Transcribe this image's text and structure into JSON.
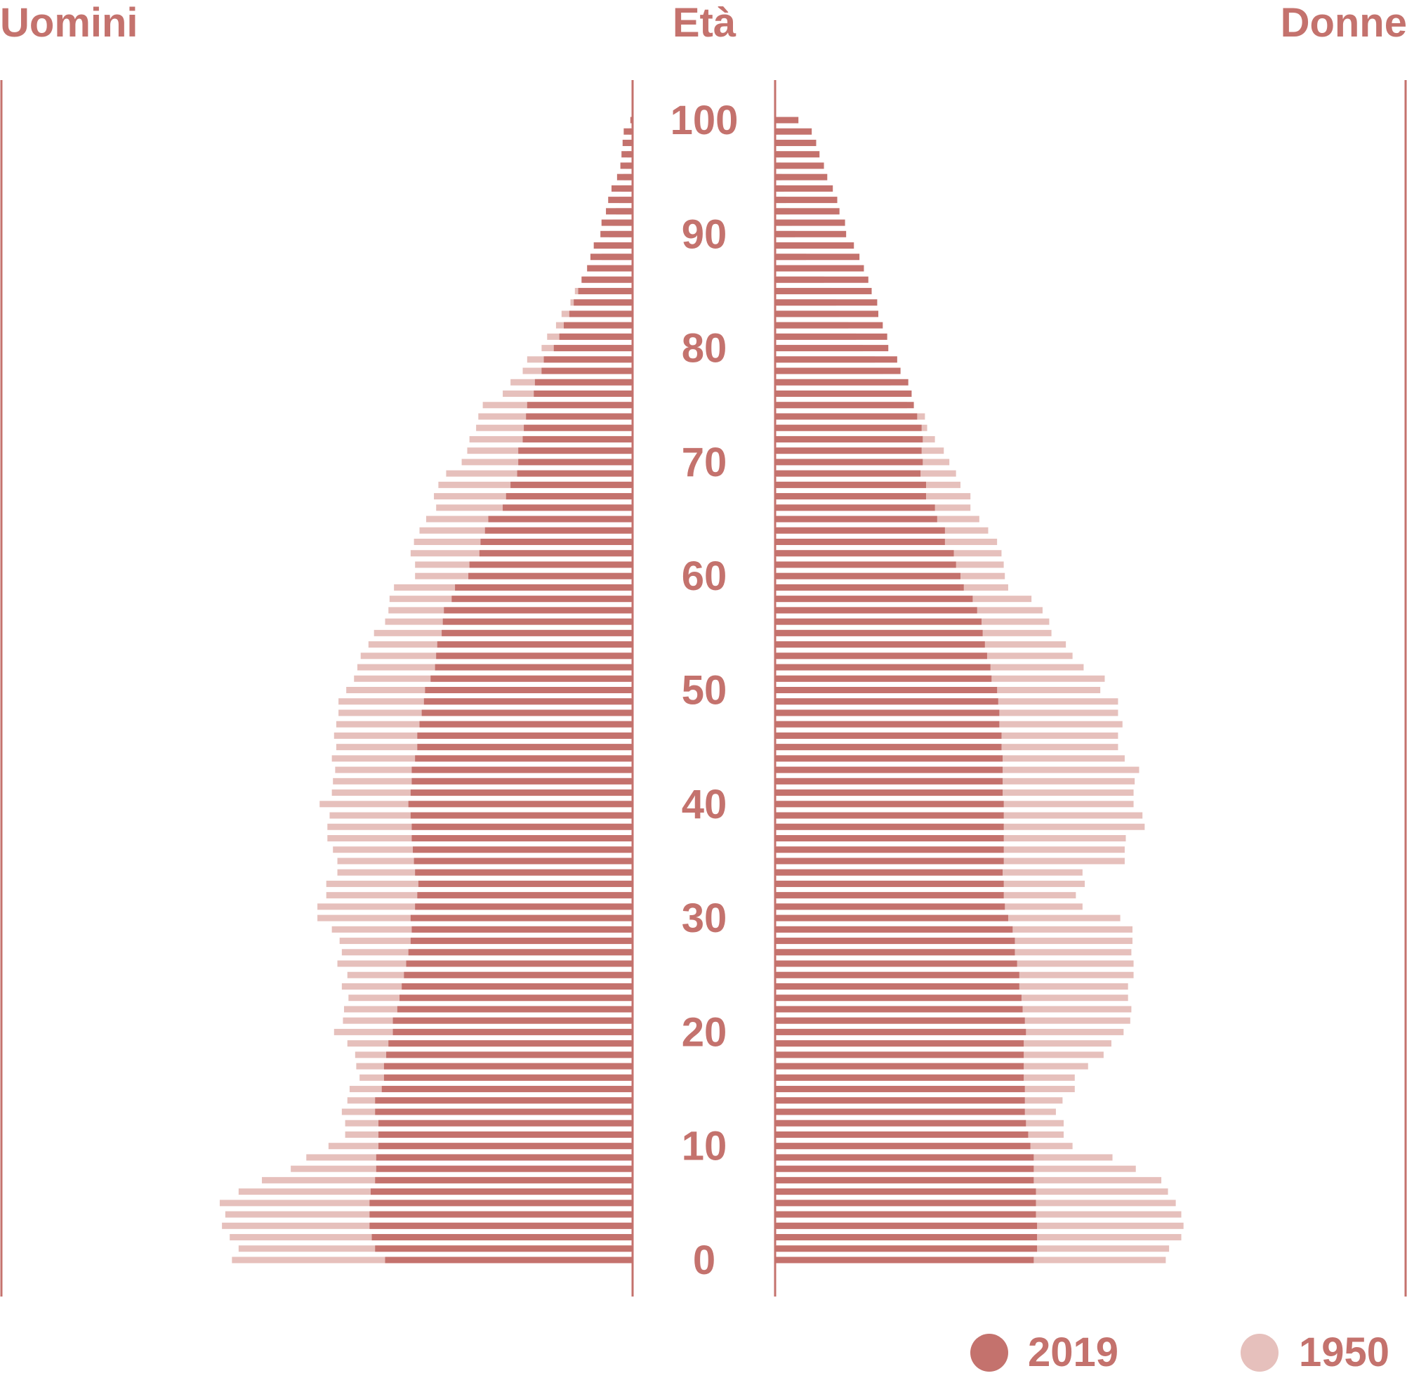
{
  "chart_data": {
    "type": "bar",
    "subtype": "population-pyramid",
    "left_label": "Uomini",
    "center_label": "Età",
    "right_label": "Donne",
    "age_ticks": [
      0,
      10,
      20,
      30,
      40,
      50,
      60,
      70,
      80,
      90,
      100
    ],
    "ages": [
      0,
      1,
      2,
      3,
      4,
      5,
      6,
      7,
      8,
      9,
      10,
      11,
      12,
      13,
      14,
      15,
      16,
      17,
      18,
      19,
      20,
      21,
      22,
      23,
      24,
      25,
      26,
      27,
      28,
      29,
      30,
      31,
      32,
      33,
      34,
      35,
      36,
      37,
      38,
      39,
      40,
      41,
      42,
      43,
      44,
      45,
      46,
      47,
      48,
      49,
      50,
      51,
      52,
      53,
      54,
      55,
      56,
      57,
      58,
      59,
      60,
      61,
      62,
      63,
      64,
      65,
      66,
      67,
      68,
      69,
      70,
      71,
      72,
      73,
      74,
      75,
      76,
      77,
      78,
      79,
      80,
      81,
      82,
      83,
      84,
      85,
      86,
      87,
      88,
      89,
      90,
      91,
      92,
      93,
      94,
      95,
      96,
      97,
      98,
      99,
      100
    ],
    "x_axis_max_thousands": 570,
    "series": [
      {
        "name": "2019",
        "color": "#c4726d",
        "men": [
          223,
          232,
          235,
          237,
          237,
          237,
          236,
          232,
          231,
          231,
          229,
          229,
          229,
          232,
          232,
          226,
          224,
          224,
          222,
          220,
          216,
          216,
          212,
          210,
          208,
          206,
          204,
          202,
          200,
          199,
          200,
          196,
          194,
          193,
          196,
          197,
          198,
          199,
          199,
          200,
          202,
          200,
          199,
          199,
          196,
          194,
          194,
          192,
          190,
          188,
          187,
          182,
          178,
          177,
          176,
          172,
          171,
          170,
          163,
          160,
          148,
          147,
          138,
          137,
          133,
          130,
          117,
          114,
          110,
          104,
          103,
          103,
          99,
          98,
          96,
          95,
          89,
          88,
          82,
          80,
          71,
          66,
          62,
          57,
          53,
          49,
          46,
          41,
          38,
          35,
          29,
          28,
          24,
          22,
          19,
          14,
          11,
          10,
          9,
          8,
          2
        ],
        "women": [
          233,
          236,
          236,
          236,
          235,
          235,
          235,
          233,
          233,
          233,
          230,
          228,
          226,
          225,
          225,
          225,
          224,
          224,
          224,
          224,
          226,
          225,
          223,
          222,
          220,
          220,
          218,
          216,
          216,
          214,
          210,
          207,
          206,
          206,
          205,
          206,
          206,
          206,
          206,
          206,
          206,
          205,
          205,
          205,
          205,
          204,
          204,
          202,
          202,
          201,
          200,
          195,
          194,
          191,
          189,
          187,
          186,
          182,
          178,
          170,
          167,
          163,
          161,
          153,
          153,
          146,
          144,
          136,
          136,
          131,
          133,
          132,
          133,
          132,
          128,
          125,
          123,
          120,
          113,
          110,
          102,
          101,
          97,
          93,
          92,
          87,
          84,
          80,
          76,
          71,
          64,
          63,
          58,
          56,
          52,
          47,
          44,
          40,
          37,
          33,
          21
        ]
      },
      {
        "name": "1950",
        "color": "#e6c0bc",
        "men": [
          361,
          355,
          363,
          370,
          367,
          372,
          355,
          334,
          308,
          294,
          274,
          259,
          259,
          262,
          257,
          255,
          246,
          249,
          250,
          257,
          269,
          261,
          260,
          256,
          262,
          257,
          266,
          262,
          264,
          271,
          284,
          284,
          276,
          276,
          266,
          266,
          270,
          275,
          275,
          273,
          282,
          271,
          270,
          268,
          271,
          267,
          269,
          267,
          265,
          265,
          258,
          251,
          248,
          245,
          238,
          233,
          223,
          220,
          219,
          215,
          196,
          196,
          200,
          197,
          192,
          186,
          177,
          179,
          175,
          168,
          154,
          149,
          147,
          141,
          139,
          135,
          117,
          110,
          99,
          95,
          82,
          77,
          69,
          64,
          56,
          52,
          45,
          36,
          28,
          25,
          21,
          18,
          15,
          12,
          10,
          8,
          6,
          5,
          4,
          3,
          2
        ],
        "women": [
          352,
          355,
          366,
          368,
          366,
          361,
          354,
          348,
          325,
          304,
          268,
          260,
          260,
          253,
          259,
          270,
          270,
          282,
          296,
          303,
          314,
          320,
          321,
          318,
          318,
          323,
          323,
          321,
          322,
          322,
          311,
          277,
          271,
          279,
          277,
          315,
          315,
          316,
          333,
          331,
          323,
          323,
          324,
          328,
          315,
          309,
          309,
          313,
          309,
          309,
          293,
          297,
          278,
          268,
          262,
          249,
          247,
          241,
          231,
          210,
          207,
          206,
          204,
          200,
          192,
          184,
          176,
          176,
          167,
          163,
          157,
          152,
          144,
          137,
          135,
          119,
          110,
          104,
          97,
          90,
          79,
          73,
          66,
          58,
          55,
          51,
          44,
          34,
          28,
          26,
          18,
          15,
          13,
          10,
          8,
          6,
          5,
          4,
          3,
          2,
          1
        ]
      }
    ],
    "legend": {
      "position": "bottom-right"
    }
  }
}
